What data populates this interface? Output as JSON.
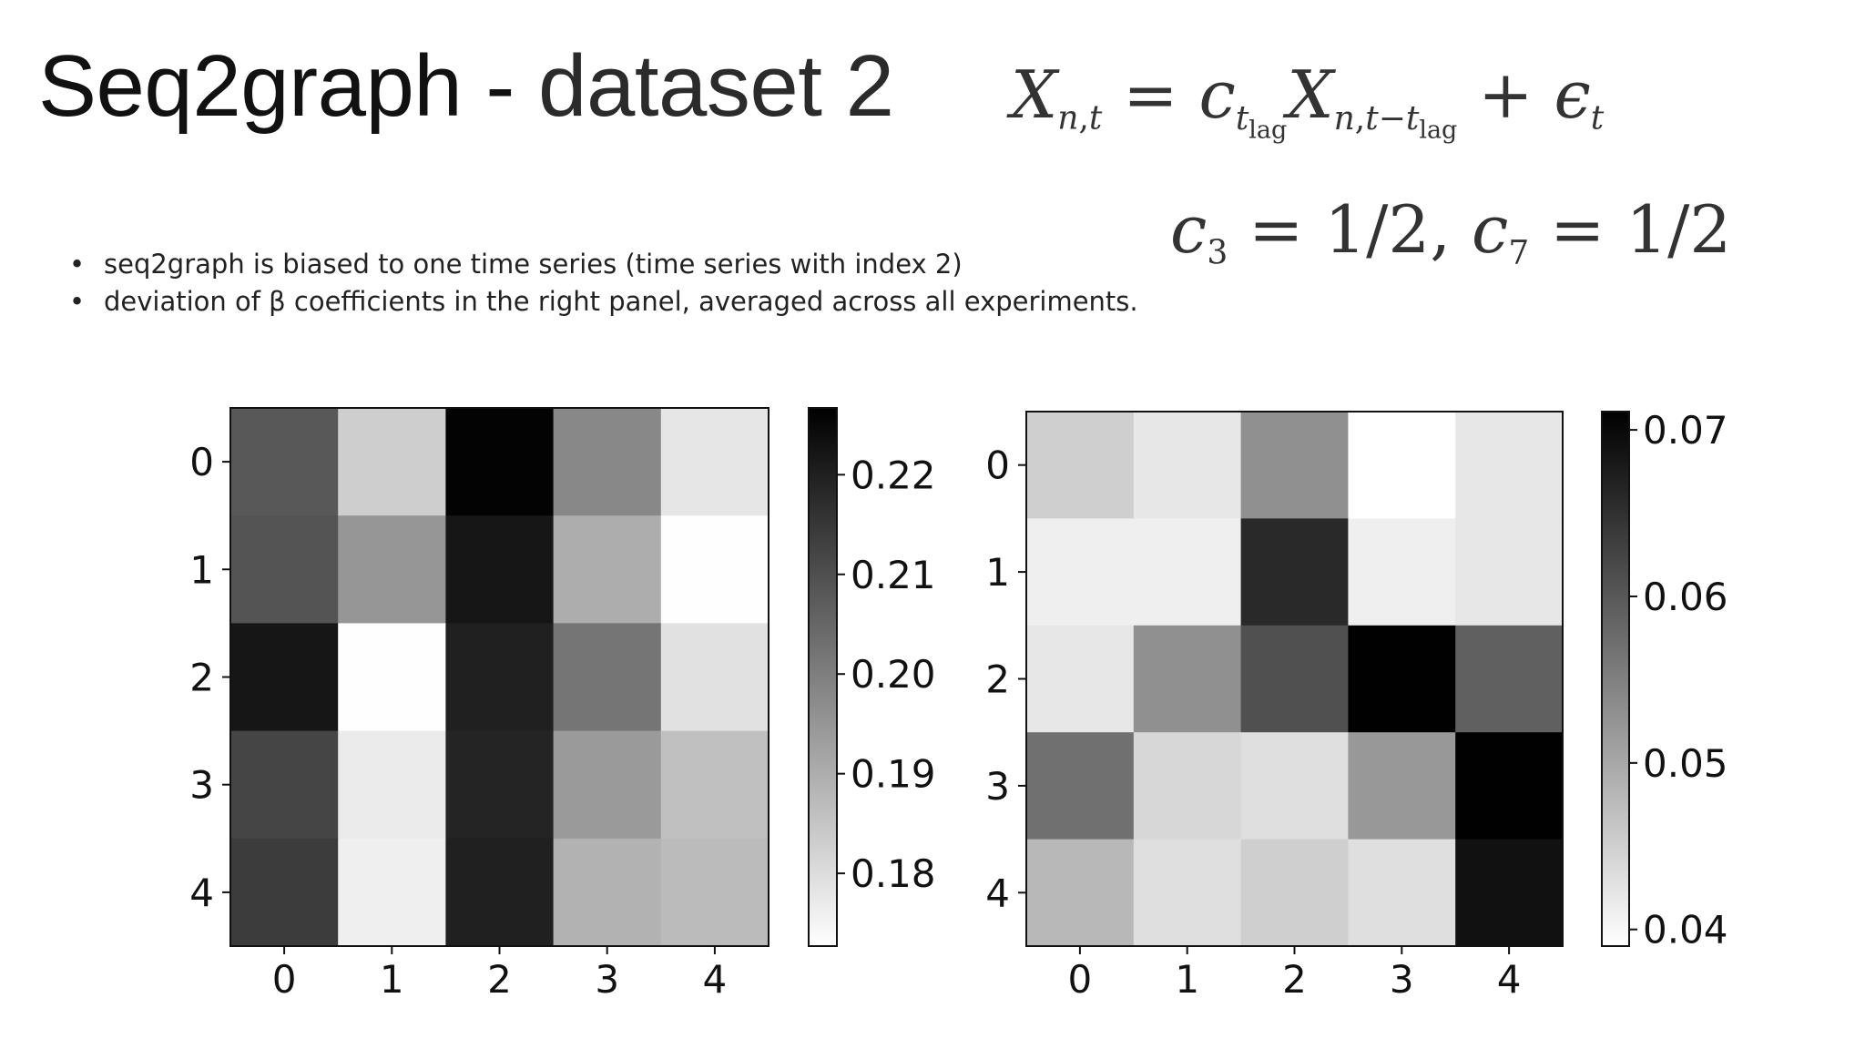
{
  "title": {
    "part1": "Seq2graph - ",
    "part2": "dataset 2"
  },
  "formula": {
    "line1_svg": "X<sub>n,t</sub> = c<sub>t<sub>lag</sub></sub>X<sub>n,t−t<sub>lag</sub></sub> + ϵ<sub>t</sub>",
    "line2_svg": "c<sub>3</sub> = 1/2, c<sub>7</sub> = 1/2"
  },
  "bullets": [
    "seq2graph is biased to one time series (time series with index 2)",
    "deviation of β coefficients in the right panel, averaged across all experiments."
  ],
  "colors": {
    "cmap_low": "#ffffff",
    "cmap_high": "#000000",
    "text": "#111111"
  },
  "chart_data": [
    {
      "type": "heatmap",
      "colormap": "grays",
      "x": [
        0,
        1,
        2,
        3,
        4
      ],
      "y": [
        0,
        1,
        2,
        3,
        4
      ],
      "values": [
        [
          0.208,
          0.183,
          0.226,
          0.198,
          0.178
        ],
        [
          0.209,
          0.195,
          0.222,
          0.19,
          0.173
        ],
        [
          0.222,
          0.173,
          0.22,
          0.202,
          0.179
        ],
        [
          0.212,
          0.177,
          0.219,
          0.194,
          0.186
        ],
        [
          0.214,
          0.176,
          0.22,
          0.189,
          0.187
        ]
      ],
      "colorbar": {
        "ticks": [
          "0.22",
          "0.21",
          "0.20",
          "0.19",
          "0.18"
        ],
        "tick_values": [
          0.22,
          0.21,
          0.2,
          0.19,
          0.18
        ],
        "range": [
          0.1727,
          0.2267
        ]
      }
    },
    {
      "type": "heatmap",
      "colormap": "grays",
      "x": [
        0,
        1,
        2,
        3,
        4
      ],
      "y": [
        0,
        1,
        2,
        3,
        4
      ],
      "values": [
        [
          0.045,
          0.042,
          0.053,
          0.039,
          0.042
        ],
        [
          0.041,
          0.041,
          0.066,
          0.041,
          0.042
        ],
        [
          0.042,
          0.053,
          0.061,
          0.071,
          0.059
        ],
        [
          0.057,
          0.044,
          0.043,
          0.052,
          0.071
        ],
        [
          0.048,
          0.043,
          0.045,
          0.043,
          0.069
        ]
      ],
      "colorbar": {
        "ticks": [
          "0.07",
          "0.06",
          "0.05",
          "0.04"
        ],
        "tick_values": [
          0.07,
          0.06,
          0.05,
          0.04
        ],
        "range": [
          0.039,
          0.0711
        ]
      }
    }
  ]
}
